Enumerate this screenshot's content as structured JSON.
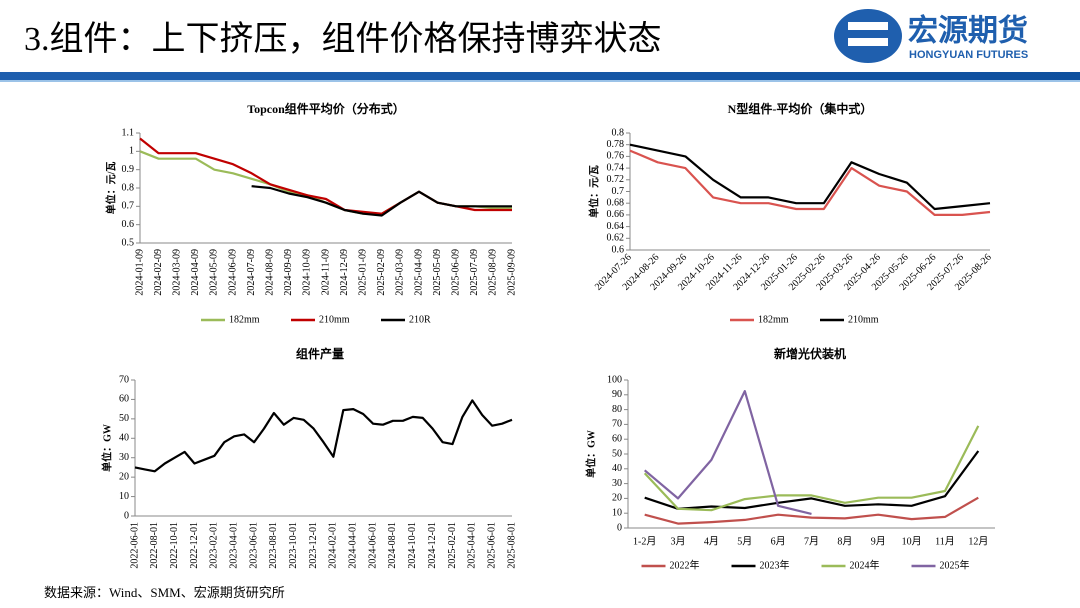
{
  "header": {
    "title": "3.组件：上下挤压，组件价格保持博弈状态"
  },
  "logo": {
    "name": "宏源期货",
    "subname": "HONGYUAN FUTURES"
  },
  "source": "数据来源：Wind、SMM、宏源期货研究所",
  "chart_data": [
    {
      "type": "line",
      "title": "Topcon组件平均价（分布式）",
      "y_label": "单位：元/瓦",
      "categories": [
        "2024-01-09",
        "2024-02-09",
        "2024-03-09",
        "2024-04-09",
        "2024-05-09",
        "2024-06-09",
        "2024-07-09",
        "2024-08-09",
        "2024-09-09",
        "2024-10-09",
        "2024-11-09",
        "2024-12-09",
        "2025-01-09",
        "2025-02-09",
        "2025-03-09",
        "2025-04-09",
        "2025-05-09",
        "2025-06-09",
        "2025-07-09",
        "2025-08-09",
        "2025-09-09"
      ],
      "series": [
        {
          "name": "182mm",
          "color": "#9bbb59",
          "values": [
            1.0,
            0.96,
            0.96,
            0.96,
            0.9,
            0.88,
            0.85,
            0.82,
            0.78,
            0.76,
            0.72,
            0.68,
            0.66,
            0.66,
            0.72,
            0.78,
            0.72,
            0.7,
            0.7,
            0.69,
            0.69
          ]
        },
        {
          "name": "210mm",
          "color": "#c00000",
          "values": [
            1.07,
            0.99,
            0.99,
            0.99,
            0.96,
            0.93,
            0.88,
            0.82,
            0.79,
            0.76,
            0.74,
            0.68,
            0.67,
            0.66,
            0.72,
            0.78,
            0.72,
            0.7,
            0.68,
            0.68,
            0.68
          ]
        },
        {
          "name": "210R",
          "color": "#000000",
          "values": [
            null,
            null,
            null,
            null,
            null,
            null,
            0.81,
            0.8,
            0.77,
            0.75,
            0.72,
            0.68,
            0.66,
            0.65,
            0.72,
            0.78,
            0.72,
            0.7,
            0.7,
            0.7,
            0.7
          ]
        }
      ],
      "ylim": [
        0.5,
        1.1
      ],
      "yticks": [
        0.5,
        0.6,
        0.7,
        0.8,
        0.9,
        1,
        1.1
      ],
      "legend": "bottom"
    },
    {
      "type": "line",
      "title": "N型组件-平均价（集中式）",
      "y_label": "单位：元/瓦",
      "categories": [
        "2024-07-26",
        "2024-08-26",
        "2024-09-26",
        "2024-10-26",
        "2024-11-26",
        "2024-12-26",
        "2025-01-26",
        "2025-02-26",
        "2025-03-26",
        "2025-04-26",
        "2025-05-26",
        "2025-06-26",
        "2025-07-26",
        "2025-08-26"
      ],
      "series": [
        {
          "name": "182mm",
          "color": "#d9534f",
          "values": [
            0.77,
            0.75,
            0.74,
            0.69,
            0.68,
            0.68,
            0.67,
            0.67,
            0.74,
            0.71,
            0.7,
            0.66,
            0.66,
            0.665
          ]
        },
        {
          "name": "210mm",
          "color": "#000000",
          "values": [
            0.78,
            0.77,
            0.76,
            0.72,
            0.69,
            0.69,
            0.68,
            0.68,
            0.75,
            0.73,
            0.715,
            0.67,
            0.675,
            0.68
          ]
        }
      ],
      "ylim": [
        0.6,
        0.8
      ],
      "yticks": [
        0.6,
        0.62,
        0.64,
        0.66,
        0.68,
        0.7,
        0.72,
        0.74,
        0.76,
        0.78,
        0.8
      ],
      "legend": "bottom"
    },
    {
      "type": "line",
      "title": "组件产量",
      "y_label": "单位：GW",
      "categories": [
        "2022-06-01",
        null,
        "2022-08-01",
        null,
        "2022-10-01",
        null,
        "2022-12-01",
        null,
        "2023-02-01",
        null,
        "2023-04-01",
        null,
        "2023-06-01",
        null,
        "2023-08-01",
        null,
        "2023-10-01",
        null,
        "2023-12-01",
        null,
        "2024-02-01",
        null,
        "2024-04-01",
        null,
        "2024-06-01",
        null,
        "2024-08-01",
        null,
        "2024-10-01",
        null,
        "2024-12-01",
        null,
        "2025-02-01",
        null,
        "2025-04-01",
        null,
        "2025-06-01",
        null,
        "2025-08-01"
      ],
      "series": [
        {
          "name": null,
          "color": "#000000",
          "values": [
            25,
            24,
            23,
            27,
            30,
            33,
            27,
            29,
            31,
            38,
            41,
            42,
            38,
            45,
            53,
            47,
            50.5,
            49.5,
            45,
            38,
            30.5,
            54.5,
            55,
            52.5,
            47.5,
            47,
            49,
            49,
            51,
            50.5,
            45,
            38,
            37,
            51,
            59.5,
            52,
            46.5,
            47.5,
            49.5
          ]
        }
      ],
      "ylim": [
        0,
        70
      ],
      "yticks": [
        0,
        10,
        20,
        30,
        40,
        50,
        60,
        70
      ]
    },
    {
      "type": "line",
      "title": "新增光伏装机",
      "y_label": "单位：GW",
      "categories": [
        "1-2月",
        "3月",
        "4月",
        "5月",
        "6月",
        "7月",
        "8月",
        "9月",
        "10月",
        "11月",
        "12月"
      ],
      "series": [
        {
          "name": "2022年",
          "color": "#c0504d",
          "values": [
            9,
            3,
            4,
            5.5,
            9,
            7,
            6.5,
            9,
            6,
            7.5,
            20.5
          ]
        },
        {
          "name": "2023年",
          "color": "#000000",
          "values": [
            20.5,
            13,
            14.5,
            13.5,
            17,
            20,
            15,
            16,
            15,
            21.5,
            52
          ]
        },
        {
          "name": "2024年",
          "color": "#9bbb59",
          "values": [
            37,
            13,
            12,
            19.5,
            22,
            22,
            17,
            20.5,
            20.5,
            25,
            69
          ]
        },
        {
          "name": "2025年",
          "color": "#8064a2",
          "values": [
            39,
            20,
            46,
            92.5,
            15,
            9.5,
            null,
            null,
            null,
            null,
            null
          ]
        }
      ],
      "ylim": [
        0,
        100
      ],
      "yticks": [
        0,
        10,
        20,
        30,
        40,
        50,
        60,
        70,
        80,
        90,
        100
      ],
      "legend": "bottom"
    }
  ]
}
